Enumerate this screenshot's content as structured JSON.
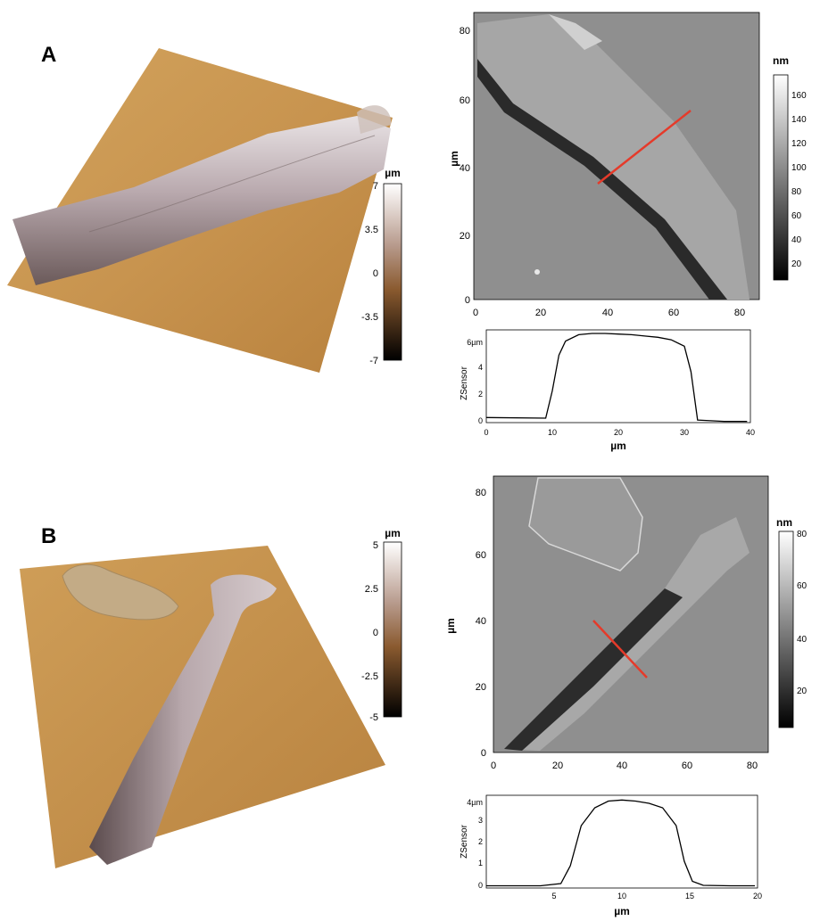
{
  "panels": [
    {
      "label": "A",
      "scale3d": {
        "unit": "µm",
        "ticks": [
          "7",
          "3.5",
          "0",
          "-3.5",
          "-7"
        ]
      },
      "afm": {
        "ylabel": "µm",
        "yticks": [
          "0",
          "20",
          "40",
          "60",
          "80"
        ],
        "xticks": [
          "0",
          "20",
          "40",
          "60",
          "80"
        ],
        "colorbar": {
          "unit": "nm",
          "ticks": [
            "160",
            "140",
            "120",
            "100",
            "80",
            "60",
            "40",
            "20"
          ]
        }
      },
      "profile": {
        "ylabel": "ZSensor",
        "xlabel": "µm",
        "top_tick": "6µm",
        "yticks": [
          "0",
          "2",
          "4"
        ],
        "xticks": [
          "0",
          "10",
          "20",
          "30",
          "40"
        ]
      }
    },
    {
      "label": "B",
      "scale3d": {
        "unit": "µm",
        "ticks": [
          "5",
          "2.5",
          "0",
          "-2.5",
          "-5"
        ]
      },
      "afm": {
        "ylabel": "µm",
        "yticks": [
          "0",
          "20",
          "40",
          "60",
          "80"
        ],
        "xticks": [
          "0",
          "20",
          "40",
          "60",
          "80"
        ],
        "colorbar": {
          "unit": "nm",
          "ticks": [
            "80",
            "60",
            "40",
            "20"
          ]
        }
      },
      "profile": {
        "ylabel": "ZSensor",
        "xlabel": "µm",
        "top_tick": "4µm",
        "yticks": [
          "0",
          "1",
          "2",
          "3"
        ],
        "xticks": [
          "5",
          "10",
          "15",
          "20"
        ]
      }
    }
  ],
  "chart_data": [
    {
      "type": "line",
      "xlabel": "µm",
      "ylabel": "ZSensor",
      "xlim": [
        0,
        40
      ],
      "ylim": [
        0,
        7
      ],
      "x": [
        0,
        9,
        10,
        11,
        12,
        14,
        16,
        18,
        20,
        22,
        24,
        26,
        28,
        30,
        31,
        32,
        34,
        36,
        39.5
      ],
      "y": [
        0.4,
        0.35,
        2.5,
        5.3,
        6.4,
        6.9,
        7.0,
        7.0,
        6.95,
        6.9,
        6.8,
        6.7,
        6.5,
        6.0,
        4.0,
        0.2,
        0.15,
        0.1,
        0.1
      ]
    },
    {
      "type": "line",
      "xlabel": "µm",
      "ylabel": "ZSensor",
      "xlim": [
        0,
        20
      ],
      "ylim": [
        0,
        4
      ],
      "x": [
        0,
        4,
        5.5,
        6.2,
        7,
        8,
        9,
        10,
        11,
        12,
        13,
        14,
        14.6,
        15.2,
        16,
        18,
        19.8
      ],
      "y": [
        0.1,
        0.1,
        0.2,
        1.0,
        2.8,
        3.6,
        3.9,
        3.95,
        3.9,
        3.8,
        3.6,
        2.8,
        1.2,
        0.3,
        0.12,
        0.1,
        0.1
      ]
    }
  ]
}
